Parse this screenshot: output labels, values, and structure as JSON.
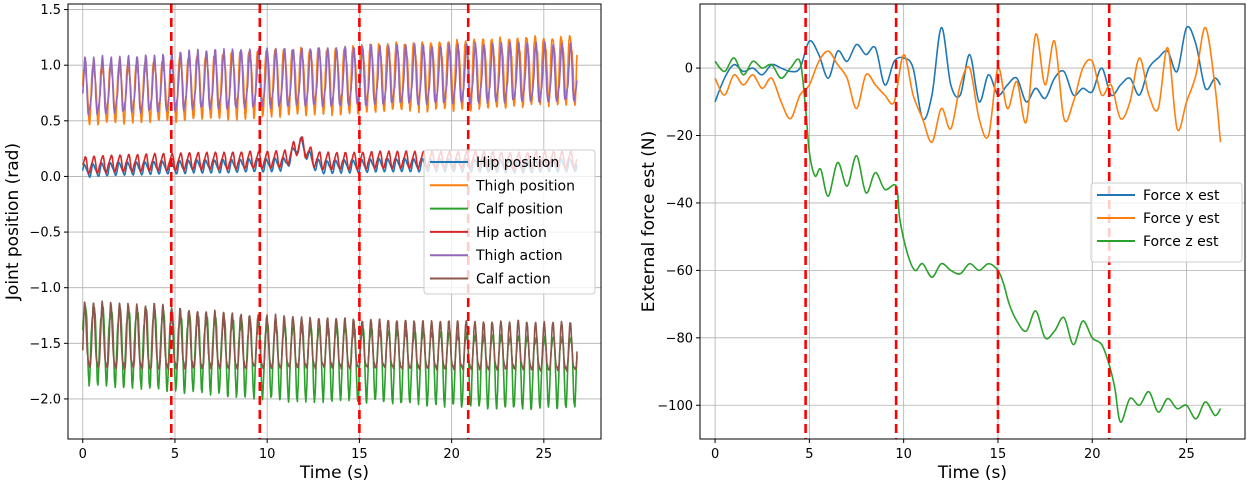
{
  "chart_data": [
    {
      "type": "line",
      "title": "",
      "xlabel": "Time (s)",
      "ylabel": "Joint position (rad)",
      "xlim": [
        -0.8,
        28.1
      ],
      "ylim": [
        -2.36,
        1.55
      ],
      "xticks": [
        0,
        5,
        10,
        15,
        20,
        25
      ],
      "xtick_labels": [
        "0",
        "5",
        "10",
        "15",
        "20",
        "25"
      ],
      "yticks": [
        -2.0,
        -1.5,
        -1.0,
        -0.5,
        0.0,
        0.5,
        1.0,
        1.5
      ],
      "ytick_labels": [
        "−2.0",
        "−1.5",
        "−1.0",
        "−0.5",
        "0.0",
        "0.5",
        "1.0",
        "1.5"
      ],
      "grid": true,
      "legend_position": "center-right",
      "vlines": [
        4.8,
        9.6,
        15.0,
        20.9
      ],
      "vline_color": "#ff0000",
      "series": [
        {
          "name": "Hip position",
          "color": "#1f77b4",
          "t": [
            0,
            1,
            2,
            3,
            4,
            5,
            6,
            7,
            8,
            9,
            10,
            11,
            11.8,
            12.5,
            13,
            14,
            15,
            16,
            17,
            18,
            19,
            20,
            21,
            22,
            23,
            24,
            25,
            26,
            26.8
          ],
          "mean": [
            0.05,
            0.06,
            0.07,
            0.07,
            0.08,
            0.08,
            0.09,
            0.09,
            0.09,
            0.1,
            0.1,
            0.11,
            0.3,
            0.12,
            0.08,
            0.09,
            0.09,
            0.1,
            0.1,
            0.1,
            0.1,
            0.1,
            0.1,
            0.1,
            0.09,
            0.09,
            0.1,
            0.1,
            0.1
          ],
          "amplitude": [
            0.06,
            0.06,
            0.06,
            0.06,
            0.06,
            0.06,
            0.06,
            0.06,
            0.06,
            0.06,
            0.06,
            0.06,
            0.06,
            0.06,
            0.06,
            0.06,
            0.06,
            0.06,
            0.06,
            0.06,
            0.06,
            0.06,
            0.06,
            0.06,
            0.06,
            0.06,
            0.06,
            0.06,
            0.06
          ],
          "period_s": 0.47
        },
        {
          "name": "Thigh position",
          "color": "#ff7f0e",
          "t": [
            0,
            2,
            4,
            5,
            6,
            8,
            10,
            12,
            14,
            15,
            17,
            19,
            21,
            23,
            25,
            26.8
          ],
          "mean": [
            0.77,
            0.78,
            0.8,
            0.82,
            0.84,
            0.86,
            0.88,
            0.9,
            0.9,
            0.92,
            0.94,
            0.95,
            0.97,
            0.98,
            1.0,
            1.0
          ],
          "amplitude": [
            0.28,
            0.28,
            0.28,
            0.3,
            0.31,
            0.32,
            0.32,
            0.32,
            0.32,
            0.33,
            0.33,
            0.33,
            0.34,
            0.34,
            0.33,
            0.33
          ],
          "period_s": 0.47
        },
        {
          "name": "Calf position",
          "color": "#2ca02c",
          "t": [
            0,
            2,
            4,
            5,
            7,
            9,
            10,
            12,
            14,
            15,
            17,
            19,
            21,
            23,
            25,
            26.8
          ],
          "mean": [
            -1.45,
            -1.48,
            -1.5,
            -1.52,
            -1.55,
            -1.58,
            -1.6,
            -1.62,
            -1.62,
            -1.63,
            -1.65,
            -1.66,
            -1.68,
            -1.7,
            -1.7,
            -1.7
          ],
          "amplitude": [
            0.38,
            0.38,
            0.38,
            0.38,
            0.37,
            0.37,
            0.37,
            0.37,
            0.36,
            0.36,
            0.36,
            0.36,
            0.36,
            0.36,
            0.35,
            0.35
          ],
          "period_s": 0.47
        },
        {
          "name": "Hip action",
          "color": "#d62728",
          "t": [
            0,
            1,
            2,
            3,
            4,
            5,
            6,
            7,
            8,
            9,
            10,
            11,
            11.8,
            12.5,
            13,
            14,
            15,
            16,
            17,
            18,
            19,
            20,
            21,
            22,
            23,
            24,
            25,
            26,
            26.8
          ],
          "mean": [
            0.1,
            0.11,
            0.12,
            0.12,
            0.13,
            0.13,
            0.14,
            0.14,
            0.14,
            0.15,
            0.15,
            0.16,
            0.3,
            0.16,
            0.14,
            0.14,
            0.14,
            0.15,
            0.15,
            0.15,
            0.15,
            0.15,
            0.15,
            0.15,
            0.14,
            0.14,
            0.15,
            0.15,
            0.15
          ],
          "amplitude": [
            0.08,
            0.08,
            0.08,
            0.08,
            0.08,
            0.08,
            0.08,
            0.08,
            0.08,
            0.08,
            0.08,
            0.08,
            0.08,
            0.08,
            0.08,
            0.08,
            0.08,
            0.08,
            0.08,
            0.08,
            0.08,
            0.08,
            0.08,
            0.08,
            0.08,
            0.08,
            0.08,
            0.08,
            0.08
          ],
          "period_s": 0.47
        },
        {
          "name": "Thigh action",
          "color": "#9467bd",
          "t": [
            0,
            2,
            4,
            5,
            6,
            8,
            10,
            12,
            14,
            15,
            17,
            19,
            21,
            23,
            25,
            26.8
          ],
          "mean": [
            0.78,
            0.79,
            0.8,
            0.82,
            0.83,
            0.84,
            0.85,
            0.86,
            0.86,
            0.87,
            0.88,
            0.88,
            0.89,
            0.9,
            0.9,
            0.9
          ],
          "amplitude": [
            0.27,
            0.27,
            0.27,
            0.28,
            0.28,
            0.28,
            0.28,
            0.28,
            0.28,
            0.28,
            0.28,
            0.28,
            0.28,
            0.28,
            0.28,
            0.28
          ],
          "period_s": 0.47
        },
        {
          "name": "Calf action",
          "color": "#8c564b",
          "t": [
            0,
            2,
            4,
            5,
            7,
            9,
            10,
            12,
            14,
            15,
            17,
            19,
            21,
            23,
            25,
            26.8
          ],
          "mean": [
            -1.48,
            -1.49,
            -1.5,
            -1.51,
            -1.52,
            -1.53,
            -1.53,
            -1.54,
            -1.54,
            -1.55,
            -1.55,
            -1.56,
            -1.56,
            -1.56,
            -1.57,
            -1.57
          ],
          "amplitude": [
            0.32,
            0.32,
            0.32,
            0.3,
            0.28,
            0.27,
            0.26,
            0.25,
            0.25,
            0.24,
            0.24,
            0.24,
            0.24,
            0.24,
            0.24,
            0.24
          ],
          "period_s": 0.47
        }
      ]
    },
    {
      "type": "line",
      "title": "",
      "xlabel": "Time (s)",
      "ylabel": "External force est (N)",
      "xlim": [
        -0.8,
        28.1
      ],
      "ylim": [
        -110,
        19
      ],
      "xticks": [
        0,
        5,
        10,
        15,
        20,
        25
      ],
      "xtick_labels": [
        "0",
        "5",
        "10",
        "15",
        "20",
        "25"
      ],
      "yticks": [
        -100,
        -80,
        -60,
        -40,
        -20,
        0
      ],
      "ytick_labels": [
        "−100",
        "−80",
        "−60",
        "−40",
        "−20",
        "0"
      ],
      "grid": true,
      "legend_position": "center-right",
      "vlines": [
        4.8,
        9.6,
        15.0,
        20.9
      ],
      "vline_color": "#ff0000",
      "series": [
        {
          "name": "Force x est",
          "color": "#1f77b4",
          "x": [
            0,
            0.5,
            1,
            1.5,
            2,
            2.5,
            3,
            3.5,
            4,
            4.5,
            5,
            5.5,
            6,
            6.5,
            7,
            7.5,
            8,
            8.5,
            9,
            9.5,
            10,
            10.5,
            11,
            11.5,
            12,
            12.5,
            13,
            13.5,
            14,
            14.5,
            15,
            15.5,
            16,
            16.5,
            17,
            17.5,
            18,
            18.5,
            19,
            19.5,
            20,
            20.5,
            21,
            21.5,
            22,
            22.5,
            23,
            23.5,
            24,
            24.5,
            25,
            25.5,
            26,
            26.5,
            26.8
          ],
          "y": [
            -10,
            -3,
            1,
            -1,
            0,
            -2,
            1,
            0,
            -1,
            0,
            8,
            4,
            -3,
            5,
            2,
            7,
            4,
            6,
            -5,
            2,
            3,
            0,
            -15,
            -8,
            12,
            -5,
            -8,
            4,
            -10,
            -2,
            -8,
            -5,
            -3,
            -10,
            -6,
            -9,
            -3,
            -1,
            -8,
            -6,
            -7,
            0,
            -8,
            -5,
            -3,
            -8,
            0,
            3,
            5,
            -1,
            12,
            7,
            -6,
            -3,
            -5
          ]
        },
        {
          "name": "Force y est",
          "color": "#ff7f0e",
          "x": [
            0,
            0.5,
            1,
            1.5,
            2,
            2.5,
            3,
            3.5,
            4,
            4.5,
            5,
            5.5,
            6,
            6.5,
            7,
            7.5,
            8,
            8.5,
            9,
            9.5,
            10,
            10.5,
            11,
            11.5,
            12,
            12.5,
            13,
            13.5,
            14,
            14.5,
            15,
            15.5,
            16,
            16.5,
            17,
            17.5,
            18,
            18.5,
            19,
            19.5,
            20,
            20.5,
            21,
            21.5,
            22,
            22.5,
            23,
            23.5,
            24,
            24.5,
            25,
            25.5,
            26,
            26.5,
            26.8
          ],
          "y": [
            -3,
            -8,
            -2,
            -5,
            -2,
            -6,
            -3,
            -10,
            -15,
            -8,
            -5,
            2,
            5,
            1,
            -3,
            -12,
            -2,
            -5,
            -8,
            -10,
            4,
            -8,
            -15,
            -22,
            -12,
            -18,
            -5,
            0,
            -15,
            -20,
            0,
            -12,
            -4,
            -16,
            10,
            -5,
            8,
            -15,
            -10,
            0,
            2,
            -8,
            -5,
            -15,
            -10,
            3,
            -8,
            -12,
            6,
            -18,
            -10,
            -2,
            12,
            -5,
            -22
          ]
        },
        {
          "name": "Force z est",
          "color": "#2ca02c",
          "x": [
            0,
            0.5,
            1,
            1.5,
            2,
            2.5,
            3,
            3.5,
            4,
            4.5,
            4.8,
            5,
            5.3,
            5.6,
            6,
            6.5,
            7,
            7.5,
            8,
            8.5,
            9,
            9.6,
            9.8,
            10.2,
            10.6,
            11,
            11.5,
            12,
            12.5,
            13,
            13.5,
            14,
            14.5,
            15,
            15.3,
            15.6,
            16,
            16.5,
            17,
            17.5,
            18,
            18.5,
            19,
            19.5,
            20,
            20.5,
            20.9,
            21.2,
            21.5,
            22,
            22.5,
            23,
            23.5,
            24,
            24.5,
            25,
            25.5,
            26,
            26.5,
            26.8
          ],
          "y": [
            2,
            -1,
            3,
            -2,
            2,
            0,
            1,
            -3,
            0,
            2,
            -12,
            -25,
            -32,
            -30,
            -38,
            -28,
            -35,
            -26,
            -37,
            -31,
            -36,
            -35,
            -45,
            -55,
            -60,
            -58,
            -62,
            -58,
            -60,
            -61,
            -58,
            -60,
            -58,
            -60,
            -64,
            -70,
            -75,
            -78,
            -72,
            -80,
            -78,
            -74,
            -82,
            -75,
            -80,
            -82,
            -88,
            -95,
            -105,
            -98,
            -100,
            -96,
            -102,
            -98,
            -101,
            -100,
            -104,
            -99,
            -103,
            -101
          ]
        }
      ]
    }
  ]
}
